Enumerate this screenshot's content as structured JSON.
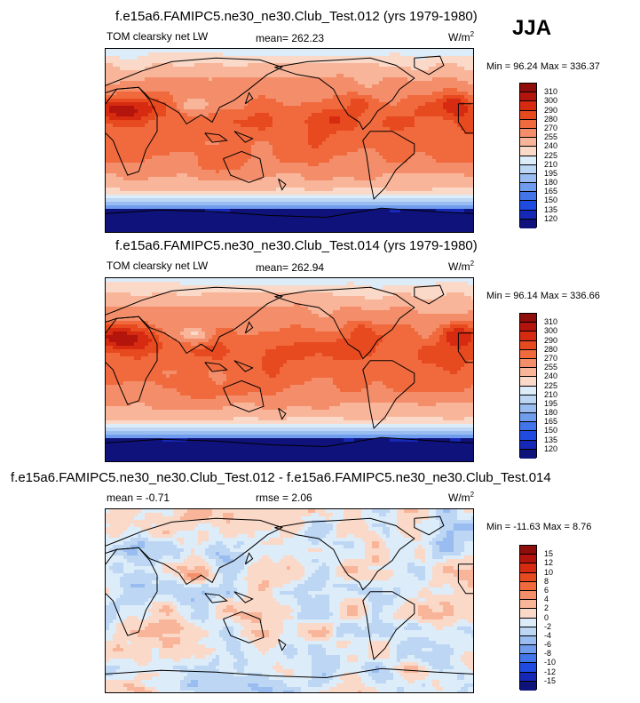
{
  "season": "JJA",
  "panels": [
    {
      "title": "f.e15a6.FAMIPC5.ne30_ne30.Club_Test.012 (yrs 1979-1980)",
      "variable": "TOM clearsky net LW",
      "mean": "mean= 262.23",
      "units_base": "W/m",
      "units_exp": "2",
      "minmax": "Min =  96.24 Max = 336.37",
      "levels": [
        "310",
        "300",
        "290",
        "280",
        "270",
        "255",
        "240",
        "225",
        "210",
        "195",
        "180",
        "165",
        "150",
        "135",
        "120"
      ],
      "colors": [
        "#8f0d0a",
        "#b3140c",
        "#d62b10",
        "#e84a1f",
        "#f06a3e",
        "#f48e6a",
        "#f8b59a",
        "#fbd9c8",
        "#dcecf9",
        "#bcd6f4",
        "#99bdf0",
        "#6f9ced",
        "#4274ea",
        "#1f4be0",
        "#1628b6",
        "#0f127a"
      ],
      "field": "abs"
    },
    {
      "title": "f.e15a6.FAMIPC5.ne30_ne30.Club_Test.014 (yrs 1979-1980)",
      "variable": "TOM clearsky net LW",
      "mean": "mean= 262.94",
      "units_base": "W/m",
      "units_exp": "2",
      "minmax": "Min =  96.14 Max = 336.66",
      "levels": [
        "310",
        "300",
        "290",
        "280",
        "270",
        "255",
        "240",
        "225",
        "210",
        "195",
        "180",
        "165",
        "150",
        "135",
        "120"
      ],
      "colors": [
        "#8f0d0a",
        "#b3140c",
        "#d62b10",
        "#e84a1f",
        "#f06a3e",
        "#f48e6a",
        "#f8b59a",
        "#fbd9c8",
        "#dcecf9",
        "#bcd6f4",
        "#99bdf0",
        "#6f9ced",
        "#4274ea",
        "#1f4be0",
        "#1628b6",
        "#0f127a"
      ],
      "field": "abs"
    },
    {
      "title": "f.e15a6.FAMIPC5.ne30_ne30.Club_Test.012 - f.e15a6.FAMIPC5.ne30_ne30.Club_Test.014",
      "variable": "mean =  -0.71",
      "mean": "rmse =   2.06",
      "units_base": "W/m",
      "units_exp": "2",
      "minmax": "Min = -11.63 Max =   8.76",
      "levels": [
        "15",
        "12",
        "10",
        "8",
        "6",
        "4",
        "2",
        "0",
        "-2",
        "-4",
        "-6",
        "-8",
        "-10",
        "-12",
        "-15"
      ],
      "colors": [
        "#8f0d0a",
        "#b3140c",
        "#d62b10",
        "#e84a1f",
        "#f06a3e",
        "#f48e6a",
        "#f8b59a",
        "#fbd9c8",
        "#dcecf9",
        "#bcd6f4",
        "#99bdf0",
        "#6f9ced",
        "#4274ea",
        "#1f4be0",
        "#1628b6",
        "#0f127a"
      ],
      "field": "diff"
    }
  ]
}
